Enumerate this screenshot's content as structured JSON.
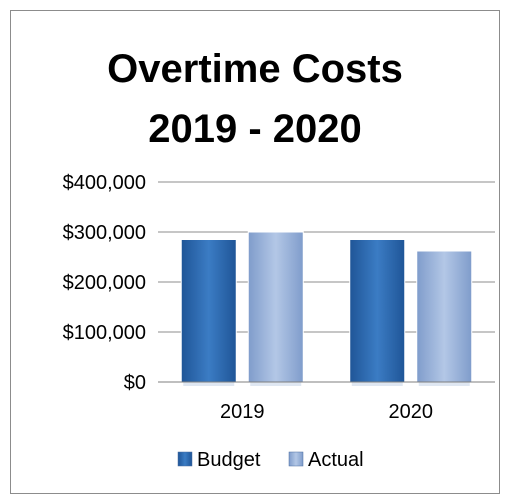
{
  "chart_data": {
    "type": "bar",
    "title": "Overtime Costs",
    "subtitle": "2019 - 2020",
    "categories": [
      "2019",
      "2020"
    ],
    "series": [
      {
        "name": "Budget",
        "values": [
          285000,
          285000
        ],
        "color": "#2f6fb5"
      },
      {
        "name": "Actual",
        "values": [
          300000,
          262000
        ],
        "color": "#9db6dc"
      }
    ],
    "ylim": [
      0,
      400000
    ],
    "yticks": [
      0,
      100000,
      200000,
      300000,
      400000
    ],
    "ytick_labels": [
      "$0",
      "$100,000",
      "$200,000",
      "$300,000",
      "$400,000"
    ],
    "grid": true,
    "legend": "bottom"
  }
}
